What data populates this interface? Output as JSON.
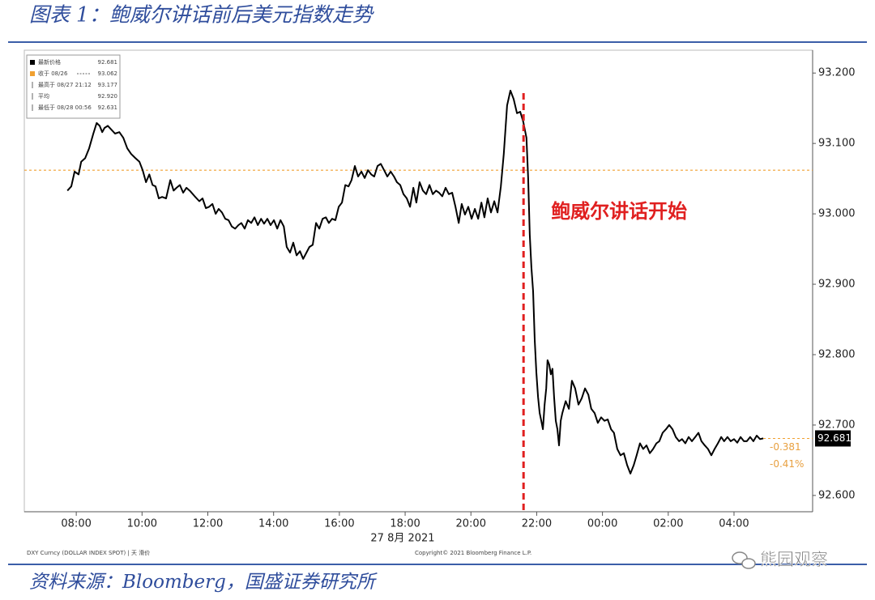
{
  "header": {
    "title": "图表 1：鲍威尔讲话前后美元指数走势"
  },
  "chart_data": {
    "type": "line",
    "x_label": "27 8月 2021",
    "xlim": [
      6.42,
      30.39
    ],
    "ylim": [
      92.578,
      93.229
    ],
    "xticks": [
      {
        "value": 8,
        "label": "08:00"
      },
      {
        "value": 10,
        "label": "10:00"
      },
      {
        "value": 12,
        "label": "12:00"
      },
      {
        "value": 14,
        "label": "14:00"
      },
      {
        "value": 16,
        "label": "16:00"
      },
      {
        "value": 18,
        "label": "18:00"
      },
      {
        "value": 20,
        "label": "20:00"
      },
      {
        "value": 22,
        "label": "22:00"
      },
      {
        "value": 24,
        "label": "00:00"
      },
      {
        "value": 26,
        "label": "02:00"
      },
      {
        "value": 28,
        "label": "04:00"
      }
    ],
    "yticks": [
      {
        "value": 92.6,
        "label": "92.600"
      },
      {
        "value": 92.7,
        "label": "92.700"
      },
      {
        "value": 92.8,
        "label": "92.800"
      },
      {
        "value": 92.9,
        "label": "92.900"
      },
      {
        "value": 93.0,
        "label": "93.000"
      },
      {
        "value": 93.1,
        "label": "93.100"
      },
      {
        "value": 93.2,
        "label": "93.200"
      }
    ],
    "x": [
      7.73,
      7.85,
      7.95,
      8.07,
      8.15,
      8.27,
      8.39,
      8.52,
      8.62,
      8.71,
      8.79,
      8.86,
      8.96,
      9.06,
      9.18,
      9.31,
      9.43,
      9.55,
      9.67,
      9.8,
      9.92,
      10.02,
      10.12,
      10.22,
      10.32,
      10.41,
      10.51,
      10.61,
      10.73,
      10.86,
      10.96,
      11.05,
      11.15,
      11.25,
      11.35,
      11.47,
      11.6,
      11.74,
      11.84,
      11.94,
      12.04,
      12.14,
      12.24,
      12.33,
      12.43,
      12.53,
      12.63,
      12.73,
      12.83,
      12.93,
      13.02,
      13.12,
      13.22,
      13.32,
      13.42,
      13.52,
      13.62,
      13.71,
      13.81,
      13.91,
      14.01,
      14.11,
      14.21,
      14.31,
      14.4,
      14.5,
      14.6,
      14.7,
      14.8,
      14.9,
      15.0,
      15.09,
      15.19,
      15.29,
      15.39,
      15.49,
      15.59,
      15.68,
      15.78,
      15.88,
      15.98,
      16.08,
      16.18,
      16.28,
      16.37,
      16.47,
      16.57,
      16.67,
      16.77,
      16.87,
      16.97,
      17.06,
      17.16,
      17.26,
      17.36,
      17.46,
      17.56,
      17.66,
      17.75,
      17.85,
      17.95,
      18.05,
      18.15,
      18.25,
      18.34,
      18.44,
      18.54,
      18.64,
      18.74,
      18.84,
      18.94,
      19.03,
      19.13,
      19.23,
      19.33,
      19.43,
      19.53,
      19.63,
      19.72,
      19.82,
      19.92,
      20.02,
      20.12,
      20.22,
      20.32,
      20.41,
      20.51,
      20.61,
      20.71,
      20.81,
      20.91,
      21.0,
      21.1,
      21.2,
      21.3,
      21.4,
      21.5,
      21.59,
      21.69,
      21.74,
      21.79,
      21.84,
      21.89,
      21.94,
      21.99,
      22.04,
      22.09,
      22.14,
      22.19,
      22.24,
      22.29,
      22.33,
      22.38,
      22.43,
      22.48,
      22.53,
      22.58,
      22.63,
      22.68,
      22.73,
      22.78,
      22.88,
      22.98,
      23.07,
      23.17,
      23.27,
      23.37,
      23.47,
      23.57,
      23.66,
      23.76,
      23.86,
      23.96,
      24.06,
      24.16,
      24.26,
      24.35,
      24.45,
      24.55,
      24.65,
      24.75,
      24.85,
      24.95,
      25.04,
      25.14,
      25.24,
      25.34,
      25.44,
      25.54,
      25.64,
      25.73,
      25.83,
      25.93,
      26.03,
      26.13,
      26.23,
      26.33,
      26.42,
      26.52,
      26.62,
      26.72,
      26.82,
      26.92,
      27.01,
      27.11,
      27.21,
      27.31,
      27.41,
      27.51,
      27.61,
      27.7,
      27.8,
      27.9,
      28.0,
      28.1,
      28.2,
      28.3,
      28.39,
      28.49,
      28.59,
      28.69,
      28.79,
      28.89
    ],
    "series": [
      {
        "name": "最新价格",
        "color": "#000000",
        "values": [
          93.033,
          93.039,
          93.06,
          93.056,
          93.074,
          93.079,
          93.093,
          93.114,
          93.129,
          93.125,
          93.116,
          93.122,
          93.125,
          93.12,
          93.114,
          93.116,
          93.108,
          93.093,
          93.085,
          93.079,
          93.074,
          93.062,
          93.045,
          93.056,
          93.041,
          93.039,
          93.022,
          93.024,
          93.022,
          93.048,
          93.033,
          93.037,
          93.041,
          93.03,
          93.037,
          93.032,
          93.025,
          93.018,
          93.022,
          93.008,
          93.01,
          93.014,
          93.0,
          93.007,
          93.002,
          92.993,
          92.991,
          92.982,
          92.979,
          92.984,
          92.987,
          92.979,
          92.991,
          92.987,
          92.995,
          92.984,
          92.993,
          92.986,
          92.993,
          92.984,
          92.991,
          92.979,
          92.991,
          92.982,
          92.953,
          92.945,
          92.959,
          92.941,
          92.947,
          92.936,
          92.945,
          92.953,
          92.956,
          92.987,
          92.979,
          92.993,
          92.995,
          92.987,
          92.993,
          92.991,
          93.01,
          93.016,
          93.041,
          93.039,
          93.048,
          93.068,
          93.053,
          93.06,
          93.051,
          93.062,
          93.056,
          93.053,
          93.068,
          93.071,
          93.062,
          93.053,
          93.06,
          93.053,
          93.045,
          93.041,
          93.028,
          93.022,
          93.01,
          93.037,
          93.016,
          93.045,
          93.033,
          93.028,
          93.041,
          93.028,
          93.033,
          93.03,
          93.025,
          93.037,
          93.028,
          93.03,
          93.01,
          92.987,
          93.014,
          92.999,
          93.01,
          92.993,
          93.007,
          92.993,
          93.016,
          92.995,
          93.022,
          93.002,
          93.018,
          93.002,
          93.039,
          93.085,
          93.154,
          93.175,
          93.163,
          93.143,
          93.145,
          93.131,
          93.108,
          93.051,
          92.97,
          92.924,
          92.89,
          92.821,
          92.775,
          92.74,
          92.717,
          92.706,
          92.694,
          92.729,
          92.752,
          92.792,
          92.786,
          92.772,
          92.78,
          92.74,
          92.706,
          92.694,
          92.671,
          92.706,
          92.717,
          92.734,
          92.723,
          92.763,
          92.752,
          92.729,
          92.738,
          92.752,
          92.743,
          92.723,
          92.717,
          92.703,
          92.711,
          92.706,
          92.708,
          92.694,
          92.689,
          92.666,
          92.657,
          92.66,
          92.643,
          92.631,
          92.643,
          92.657,
          92.674,
          92.666,
          92.671,
          92.66,
          92.666,
          92.674,
          92.677,
          92.689,
          92.694,
          92.7,
          92.694,
          92.683,
          92.677,
          92.68,
          92.674,
          92.683,
          92.677,
          92.683,
          92.689,
          92.677,
          92.671,
          92.666,
          92.657,
          92.666,
          92.674,
          92.683,
          92.677,
          92.683,
          92.677,
          92.68,
          92.675,
          92.683,
          92.677,
          92.677,
          92.683,
          92.677,
          92.685,
          92.68,
          92.681
        ]
      }
    ],
    "stats": [
      {
        "name": "最新价格",
        "value": 92.681,
        "color": "#000000"
      },
      {
        "name": "收于 08/26",
        "value": 93.062,
        "color": "#f0a030"
      },
      {
        "name": "最高于 08/27 21:12",
        "value": 93.177
      },
      {
        "name": "平均",
        "value": 92.92,
        "value_label": "92.920"
      },
      {
        "name": "最低于 08/28 00:56",
        "value": 92.631
      }
    ],
    "change": -0.381,
    "change_pct": {
      "value": -0.41,
      "label": "-0.41%"
    },
    "annotation": {
      "text": "鲍威尔讲话开始",
      "x": 21.6,
      "color": "#e02020"
    },
    "notes": [
      "DXY Curncy (DOLLAR INDEX SPOT) | 天 滑价",
      "Copyright© 2021 Bloomberg Finance L.P."
    ]
  },
  "footer": {
    "source": "资料来源：Bloomberg，国盛证券研究所",
    "watermark": "熊园观察"
  }
}
